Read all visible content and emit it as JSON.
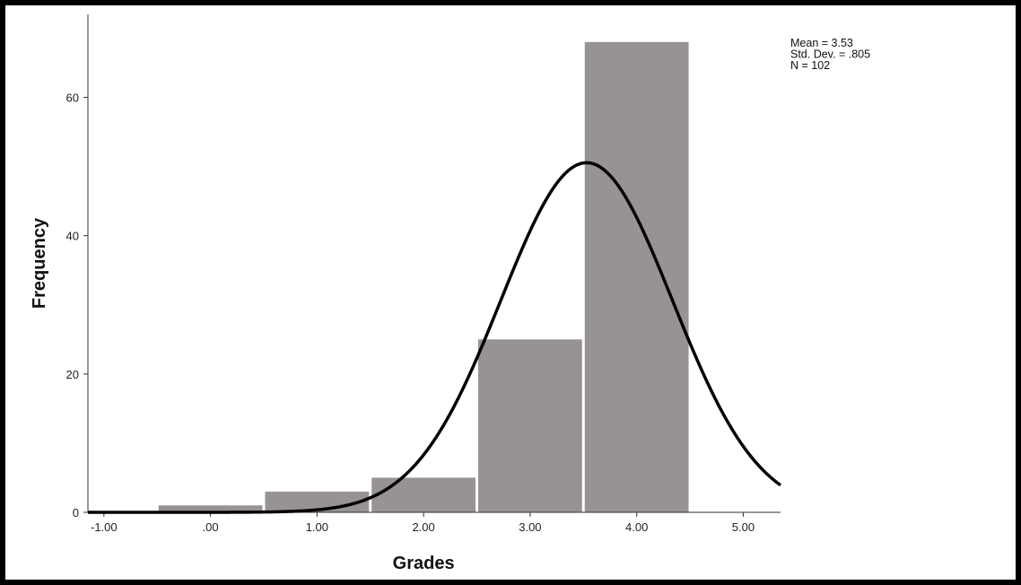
{
  "chart_data": {
    "type": "bar",
    "subtype": "histogram-with-normal-curve",
    "xlabel": "Grades",
    "ylabel": "Frequency",
    "x_ticks": [
      -1,
      0,
      1,
      2,
      3,
      4,
      5
    ],
    "x_tick_labels": [
      "-1.00",
      ".00",
      "1.00",
      "2.00",
      "3.00",
      "4.00",
      "5.00"
    ],
    "y_ticks": [
      0,
      20,
      40,
      60
    ],
    "y_tick_labels": [
      "0",
      "20",
      "40",
      "60"
    ],
    "xlim": [
      -1.15,
      5.35
    ],
    "ylim": [
      0,
      72
    ],
    "bins": [
      {
        "center": 0,
        "value": 1
      },
      {
        "center": 1,
        "value": 3
      },
      {
        "center": 2,
        "value": 5
      },
      {
        "center": 3,
        "value": 25
      },
      {
        "center": 4,
        "value": 68
      }
    ],
    "bin_width": 1,
    "bar_color": "#979393",
    "curve": {
      "mean": 3.53,
      "sd": 0.805,
      "n": 102,
      "color": "#000000"
    },
    "stats_lines": [
      "Mean = 3.53",
      "Std. Dev. = .805",
      "N = 102"
    ],
    "grid": false
  }
}
